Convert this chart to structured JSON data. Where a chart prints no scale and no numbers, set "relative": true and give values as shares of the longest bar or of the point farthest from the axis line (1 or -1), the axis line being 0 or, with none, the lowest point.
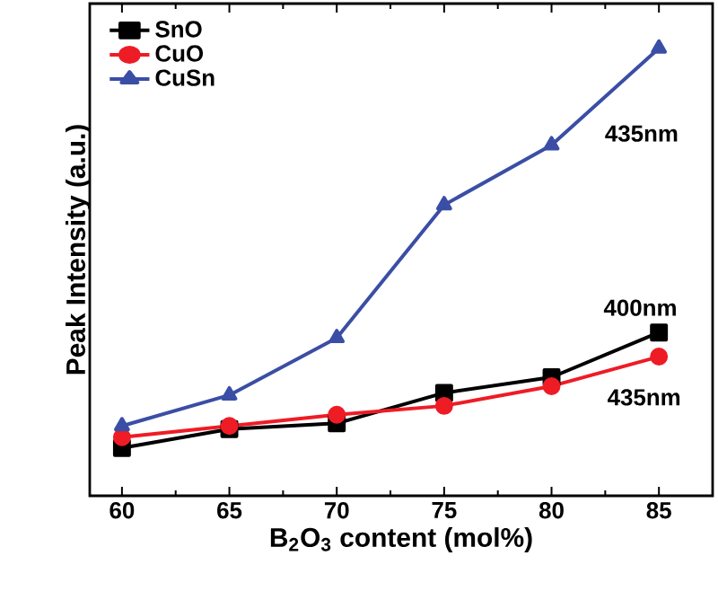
{
  "chart_data": {
    "type": "line",
    "relative": true,
    "xlabel": "B$_{2}$O$_{3}$ content (mol%)",
    "ylabel": "Peak Intensity (a.u.)",
    "x": [
      60,
      65,
      70,
      75,
      80,
      85
    ],
    "xlim": [
      58.5,
      87.5
    ],
    "xticks": [
      60,
      65,
      70,
      75,
      80,
      85
    ],
    "series": [
      {
        "name": "SnO",
        "color": "#000000",
        "marker": "square",
        "values": [
          0.107,
          0.149,
          0.162,
          0.23,
          0.265,
          0.365
        ]
      },
      {
        "name": "CuO",
        "color": "#ee1c25",
        "marker": "circle",
        "values": [
          0.131,
          0.156,
          0.181,
          0.201,
          0.245,
          0.311
        ]
      },
      {
        "name": "CuSn",
        "color": "#3b4ea5",
        "marker": "triangle",
        "values": [
          0.156,
          0.225,
          0.353,
          0.65,
          0.784,
          1
        ]
      }
    ],
    "annotations": [
      "435nm",
      "400nm",
      "435nm"
    ],
    "legend": "top left",
    "grid": false,
    "line_style": "solid"
  }
}
